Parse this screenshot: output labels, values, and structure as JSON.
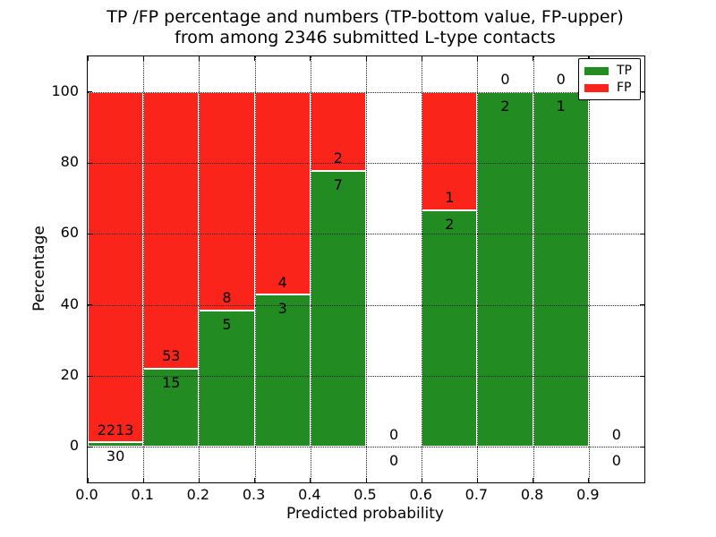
{
  "chart_data": {
    "type": "bar",
    "stacked": true,
    "title_line1": "TP /FP percentage and numbers (TP-bottom value, FP-upper)",
    "title_line2": "from among 2346 submitted L-type contacts",
    "xlabel": "Predicted probability",
    "ylabel": "Percentage",
    "xlim": [
      0.0,
      1.0
    ],
    "ylim": [
      -10,
      110
    ],
    "x_tick_labels": [
      "0.0",
      "0.1",
      "0.2",
      "0.3",
      "0.4",
      "0.5",
      "0.6",
      "0.7",
      "0.8",
      "0.9"
    ],
    "y_tick_values": [
      0,
      20,
      40,
      60,
      80,
      100
    ],
    "grid": "dotted",
    "total_contacts": 2346,
    "colors": {
      "tp": "#228b22",
      "fp": "#fa241b"
    },
    "legend": {
      "position": "upper right",
      "entries": [
        {
          "label": "TP",
          "color": "#228b22"
        },
        {
          "label": "FP",
          "color": "#fa241b"
        }
      ]
    },
    "bins": [
      {
        "range": [
          0.0,
          0.1
        ],
        "tp": 30,
        "fp": 2213,
        "tp_pct": 1.34
      },
      {
        "range": [
          0.1,
          0.2
        ],
        "tp": 15,
        "fp": 53,
        "tp_pct": 22.06
      },
      {
        "range": [
          0.2,
          0.3
        ],
        "tp": 5,
        "fp": 8,
        "tp_pct": 38.46
      },
      {
        "range": [
          0.3,
          0.4
        ],
        "tp": 3,
        "fp": 4,
        "tp_pct": 42.86
      },
      {
        "range": [
          0.4,
          0.5
        ],
        "tp": 7,
        "fp": 2,
        "tp_pct": 77.78
      },
      {
        "range": [
          0.5,
          0.6
        ],
        "tp": 0,
        "fp": 0,
        "tp_pct": 0
      },
      {
        "range": [
          0.6,
          0.7
        ],
        "tp": 2,
        "fp": 1,
        "tp_pct": 66.67
      },
      {
        "range": [
          0.7,
          0.8
        ],
        "tp": 2,
        "fp": 0,
        "tp_pct": 100
      },
      {
        "range": [
          0.8,
          0.9
        ],
        "tp": 1,
        "fp": 0,
        "tp_pct": 100
      },
      {
        "range": [
          0.9,
          1.0
        ],
        "tp": 0,
        "fp": 0,
        "tp_pct": 0
      }
    ]
  }
}
